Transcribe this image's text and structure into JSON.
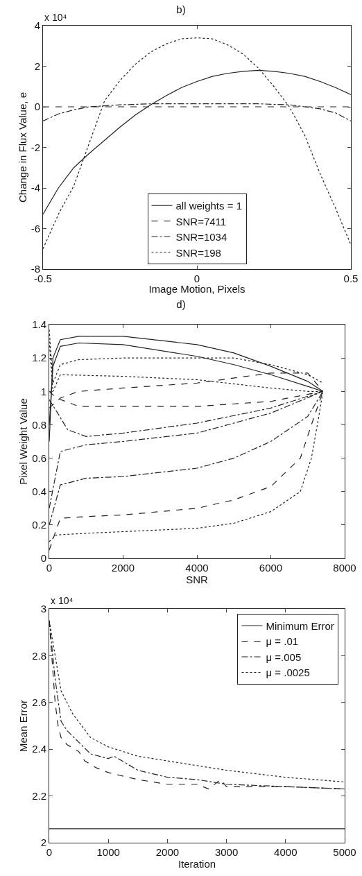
{
  "chart_data": [
    {
      "type": "line",
      "title": "b)",
      "xlabel": "Image Motion, Pixels",
      "ylabel": "Change in Flux Value, e",
      "annotations": [
        "x 10⁴"
      ],
      "legend": "bottom",
      "xlim": [
        -0.5,
        0.5
      ],
      "xticks": [
        -0.5,
        0,
        0.5
      ],
      "ylim": [
        -8,
        4
      ],
      "yticks": [
        -8,
        -6,
        -4,
        -2,
        0,
        2,
        4
      ],
      "x": [
        -0.5,
        -0.45,
        -0.4,
        -0.35,
        -0.3,
        -0.25,
        -0.2,
        -0.15,
        -0.1,
        -0.05,
        0,
        0.05,
        0.1,
        0.15,
        0.2,
        0.25,
        0.3,
        0.35,
        0.4,
        0.45,
        0.5
      ],
      "series": [
        {
          "name": "all weights = 1",
          "color": "#222222",
          "line_style": "solid",
          "values": [
            -5.3,
            -4.0,
            -3.0,
            -2.3,
            -1.65,
            -1.0,
            -0.4,
            0.1,
            0.55,
            0.95,
            1.25,
            1.5,
            1.65,
            1.75,
            1.8,
            1.75,
            1.65,
            1.5,
            1.25,
            0.95,
            0.6
          ]
        },
        {
          "name": "SNR=7411",
          "color": "#222222",
          "line_style": "dashed",
          "values": [
            0,
            0,
            0,
            0,
            0,
            0,
            0,
            0,
            0,
            0,
            0,
            0,
            0,
            0,
            0,
            0,
            0,
            0,
            0,
            0,
            0
          ]
        },
        {
          "name": "SNR=1034",
          "color": "#222222",
          "line_style": "dashdot",
          "values": [
            -0.7,
            -0.35,
            -0.15,
            0,
            0.05,
            0.1,
            0.12,
            0.15,
            0.15,
            0.15,
            0.15,
            0.15,
            0.15,
            0.15,
            0.15,
            0.12,
            0.1,
            0,
            -0.1,
            -0.3,
            -0.7
          ]
        },
        {
          "name": "SNR=198",
          "color": "#222222",
          "line_style": "dotted",
          "values": [
            -7.0,
            -5.3,
            -3.9,
            -1.8,
            0.3,
            1.3,
            2.1,
            2.7,
            3.1,
            3.35,
            3.4,
            3.35,
            3.05,
            2.6,
            1.9,
            1.0,
            0,
            -1.4,
            -3.3,
            -5.0,
            -6.8
          ]
        }
      ]
    },
    {
      "type": "line",
      "title": "d)",
      "xlabel": "SNR",
      "ylabel": "Pixel Weight Value",
      "legend": false,
      "xlim": [
        0,
        8000
      ],
      "xticks": [
        0,
        2000,
        4000,
        6000,
        8000
      ],
      "ylim": [
        0,
        1.4
      ],
      "yticks": [
        0,
        0.2,
        0.4,
        0.6,
        0.8,
        1,
        1.2,
        1.4
      ],
      "series": [
        {
          "color": "#222222",
          "line_style": "solid",
          "x": [
            0,
            100,
            300,
            800,
            2000,
            4000,
            5000,
            6000,
            7000,
            7411
          ],
          "values": [
            0.7,
            1.2,
            1.31,
            1.33,
            1.33,
            1.28,
            1.23,
            1.15,
            1.06,
            1.0
          ]
        },
        {
          "color": "#222222",
          "line_style": "solid",
          "x": [
            0,
            100,
            300,
            800,
            2000,
            4000,
            5000,
            6000,
            7000,
            7411
          ],
          "values": [
            0.8,
            1.15,
            1.27,
            1.29,
            1.28,
            1.21,
            1.16,
            1.1,
            1.03,
            1.0
          ]
        },
        {
          "color": "#222222",
          "line_style": "dotted",
          "x": [
            0,
            100,
            300,
            800,
            2000,
            4000,
            5000,
            6000,
            7000,
            7411
          ],
          "values": [
            1.37,
            1.05,
            1.16,
            1.19,
            1.2,
            1.2,
            1.2,
            1.16,
            1.1,
            1.05
          ]
        },
        {
          "color": "#222222",
          "line_style": "dotted",
          "x": [
            0,
            100,
            300,
            2000,
            4000,
            6000,
            7000,
            7411
          ],
          "values": [
            1.3,
            1.0,
            1.1,
            1.09,
            1.07,
            1.02,
            1.0,
            1.0
          ]
        },
        {
          "color": "#222222",
          "line_style": "dashed",
          "x": [
            0,
            300,
            800,
            2000,
            4000,
            6000,
            7000,
            7411
          ],
          "values": [
            0.9,
            0.96,
            1.0,
            1.02,
            1.05,
            1.11,
            1.11,
            1.0
          ]
        },
        {
          "color": "#222222",
          "line_style": "dashed",
          "x": [
            0,
            200,
            800,
            2000,
            4000,
            6000,
            7411
          ],
          "values": [
            1.0,
            0.96,
            0.91,
            0.91,
            0.91,
            0.94,
            1.0
          ]
        },
        {
          "color": "#222222",
          "line_style": "dashdot",
          "x": [
            0,
            200,
            500,
            1000,
            2000,
            4000,
            6000,
            7411
          ],
          "values": [
            0.95,
            0.88,
            0.77,
            0.73,
            0.75,
            0.81,
            0.9,
            1.0
          ]
        },
        {
          "color": "#222222",
          "line_style": "dashdot",
          "x": [
            0,
            300,
            1000,
            2000,
            4000,
            6000,
            7411
          ],
          "values": [
            0.3,
            0.64,
            0.68,
            0.7,
            0.75,
            0.87,
            1.0
          ]
        },
        {
          "color": "#222222",
          "line_style": "dashdot",
          "x": [
            0,
            300,
            1000,
            2000,
            4000,
            5000,
            6000,
            7000,
            7411
          ],
          "values": [
            0.2,
            0.44,
            0.48,
            0.49,
            0.54,
            0.6,
            0.7,
            0.85,
            1.0
          ]
        },
        {
          "color": "#222222",
          "line_style": "dashed",
          "x": [
            0,
            300,
            1000,
            2000,
            4000,
            5000,
            6000,
            6800,
            7100,
            7411
          ],
          "values": [
            0.05,
            0.24,
            0.25,
            0.26,
            0.3,
            0.35,
            0.43,
            0.6,
            0.8,
            1.0
          ]
        },
        {
          "color": "#222222",
          "line_style": "dotted",
          "x": [
            0,
            200,
            1000,
            2000,
            4000,
            5000,
            6000,
            6800,
            7100,
            7300,
            7411
          ],
          "values": [
            0.1,
            0.14,
            0.15,
            0.16,
            0.18,
            0.21,
            0.28,
            0.4,
            0.6,
            0.85,
            1.0
          ]
        }
      ]
    },
    {
      "type": "line",
      "xlabel": "Iteration",
      "ylabel": "Mean Error",
      "annotations": [
        "x 10⁴"
      ],
      "legend": "top right",
      "xlim": [
        0,
        5000
      ],
      "xticks": [
        0,
        1000,
        2000,
        3000,
        4000,
        5000
      ],
      "ylim": [
        2,
        3
      ],
      "yticks": [
        2,
        2.2,
        2.4,
        2.6,
        2.8,
        3
      ],
      "series": [
        {
          "name": "Minimum Error",
          "color": "#222222",
          "line_style": "solid",
          "x": [
            0,
            5000
          ],
          "values": [
            2.06,
            2.06
          ]
        },
        {
          "name": "μ = .01",
          "color": "#222222",
          "line_style": "dashed",
          "x": [
            0,
            100,
            150,
            200,
            300,
            500,
            600,
            800,
            1000,
            1500,
            2000,
            2500,
            2700,
            2900,
            3000,
            4000,
            5000
          ],
          "values": [
            2.95,
            2.6,
            2.5,
            2.45,
            2.42,
            2.39,
            2.35,
            2.32,
            2.3,
            2.27,
            2.25,
            2.25,
            2.23,
            2.27,
            2.24,
            2.24,
            2.23
          ]
        },
        {
          "name": "μ =.005",
          "color": "#222222",
          "line_style": "dashdot",
          "x": [
            0,
            100,
            200,
            300,
            500,
            700,
            1000,
            1100,
            1500,
            2000,
            2500,
            3000,
            4000,
            5000
          ],
          "values": [
            2.95,
            2.7,
            2.52,
            2.48,
            2.43,
            2.38,
            2.36,
            2.37,
            2.31,
            2.28,
            2.27,
            2.25,
            2.24,
            2.23
          ]
        },
        {
          "name": "μ = .0025",
          "color": "#222222",
          "line_style": "dotted",
          "x": [
            0,
            100,
            200,
            400,
            700,
            1000,
            1500,
            2000,
            3000,
            4000,
            5000
          ],
          "values": [
            2.95,
            2.8,
            2.65,
            2.55,
            2.45,
            2.41,
            2.37,
            2.35,
            2.31,
            2.28,
            2.26
          ]
        }
      ]
    }
  ]
}
